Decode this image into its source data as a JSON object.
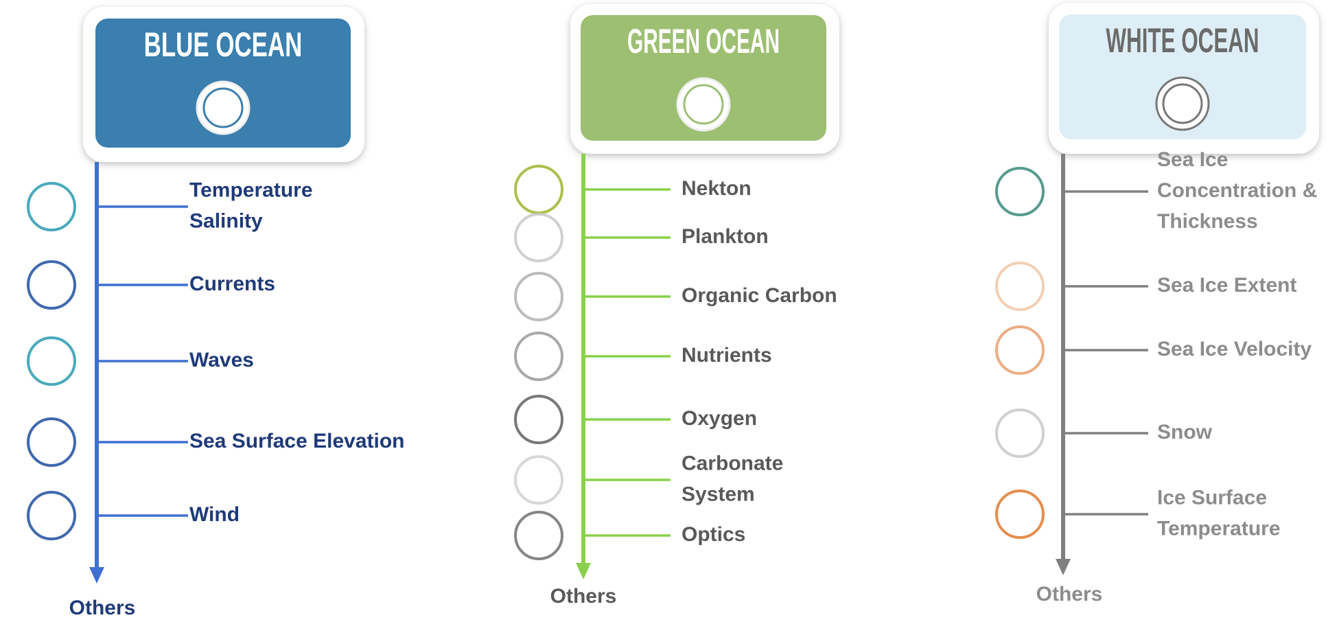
{
  "columns": [
    {
      "title": "BLUE OCEAN",
      "items": [
        {
          "label": [
            "Temperature",
            "Salinity"
          ]
        },
        {
          "label": [
            "Currents"
          ]
        },
        {
          "label": [
            "Waves"
          ]
        },
        {
          "label": [
            "Sea Surface Elevation"
          ]
        },
        {
          "label": [
            "Wind"
          ]
        }
      ],
      "others": "Others"
    },
    {
      "title": "GREEN OCEAN",
      "items": [
        {
          "label": [
            "Nekton"
          ]
        },
        {
          "label": [
            "Plankton"
          ]
        },
        {
          "label": [
            "Organic Carbon"
          ]
        },
        {
          "label": [
            "Nutrients"
          ]
        },
        {
          "label": [
            "Oxygen"
          ]
        },
        {
          "label": [
            "Carbonate",
            "System"
          ]
        },
        {
          "label": [
            "Optics"
          ]
        }
      ],
      "others": "Others"
    },
    {
      "title": "WHITE OCEAN",
      "items": [
        {
          "label": [
            "Sea Ice",
            "Concentration &",
            "Thickness"
          ]
        },
        {
          "label": [
            "Sea Ice Extent"
          ]
        },
        {
          "label": [
            "Sea Ice Velocity"
          ]
        },
        {
          "label": [
            "Snow"
          ]
        },
        {
          "label": [
            "Ice Surface",
            "Temperature"
          ]
        }
      ],
      "others": "Others"
    }
  ]
}
